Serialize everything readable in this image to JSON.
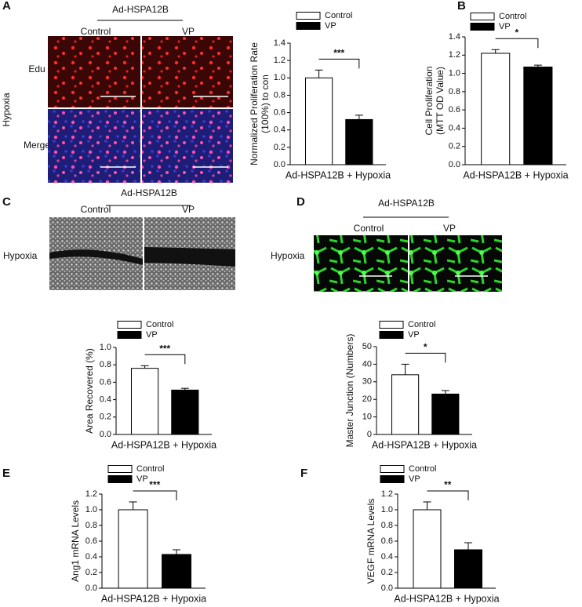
{
  "panels": {
    "letters": [
      "A",
      "B",
      "C",
      "D",
      "E",
      "F"
    ],
    "a": {
      "header": "Ad-HSPA12B",
      "columns": [
        "Control",
        "VP"
      ],
      "rows": [
        "Edu",
        "Merge"
      ],
      "side": "Hypoxia"
    },
    "c": {
      "header": "Ad-HSPA12B",
      "columns": [
        "Control",
        "VP"
      ],
      "side": "Hypoxia"
    },
    "d": {
      "header": "Ad-HSPA12B",
      "columns": [
        "Control",
        "VP"
      ],
      "side": "Hypoxia"
    }
  },
  "chart_data": [
    {
      "type": "bar",
      "y_label": [
        "Normalized Proliferation Rate",
        "(100%) to con"
      ],
      "categories": [
        "Ad-HSPA12B + Hypoxia"
      ],
      "series": [
        {
          "name": "Control",
          "color": "#ffffff",
          "values": [
            1.0
          ],
          "errors": [
            0.09
          ]
        },
        {
          "name": "VP",
          "color": "#000000",
          "values": [
            0.52
          ],
          "errors": [
            0.05
          ]
        }
      ],
      "significance": "***",
      "ylim": [
        0,
        1.4
      ],
      "yticks": [
        {
          "value": 0,
          "label": "0.0"
        },
        {
          "value": 0.2,
          "label": "0.2"
        },
        {
          "value": 0.4,
          "label": "0.4"
        },
        {
          "value": 0.6,
          "label": "0.6"
        },
        {
          "value": 0.8,
          "label": "0.8"
        },
        {
          "value": 1,
          "label": "1.0"
        },
        {
          "value": 1.2,
          "label": "1.2"
        },
        {
          "value": 1.4,
          "label": "1.4"
        }
      ]
    },
    {
      "type": "bar",
      "y_label": [
        "Cell Proliferation",
        "(MTT OD Value)"
      ],
      "categories": [
        "Ad-HSPA12B + Hypoxia"
      ],
      "series": [
        {
          "name": "Control",
          "color": "#ffffff",
          "values": [
            1.22
          ],
          "errors": [
            0.04
          ]
        },
        {
          "name": "VP",
          "color": "#000000",
          "values": [
            1.07
          ],
          "errors": [
            0.02
          ]
        }
      ],
      "significance": "*",
      "ylim": [
        0,
        1.4
      ],
      "yticks": [
        {
          "value": 0,
          "label": "0.0"
        },
        {
          "value": 0.2,
          "label": "0.2"
        },
        {
          "value": 0.4,
          "label": "0.4"
        },
        {
          "value": 0.6,
          "label": "0.6"
        },
        {
          "value": 0.8,
          "label": "0.8"
        },
        {
          "value": 1,
          "label": "1.0"
        },
        {
          "value": 1.2,
          "label": "1.2"
        },
        {
          "value": 1.4,
          "label": "1.4"
        }
      ]
    },
    {
      "type": "bar",
      "y_label": [
        "Area Recovered (%)"
      ],
      "categories": [
        "Ad-HSPA12B + Hypoxia"
      ],
      "series": [
        {
          "name": "Control",
          "color": "#ffffff",
          "values": [
            0.76
          ],
          "errors": [
            0.03
          ]
        },
        {
          "name": "VP",
          "color": "#000000",
          "values": [
            0.51
          ],
          "errors": [
            0.02
          ]
        }
      ],
      "significance": "***",
      "ylim": [
        0,
        1.0
      ],
      "yticks": [
        {
          "value": 0,
          "label": "0.0"
        },
        {
          "value": 0.2,
          "label": "0.2"
        },
        {
          "value": 0.4,
          "label": "0.4"
        },
        {
          "value": 0.6,
          "label": "0.6"
        },
        {
          "value": 0.8,
          "label": "0.8"
        },
        {
          "value": 1,
          "label": "1.0"
        }
      ]
    },
    {
      "type": "bar",
      "y_label": [
        "Master Junction (Numbers)"
      ],
      "categories": [
        "Ad-HSPA12B + Hypoxia"
      ],
      "series": [
        {
          "name": "Control",
          "color": "#ffffff",
          "values": [
            34
          ],
          "errors": [
            6
          ]
        },
        {
          "name": "VP",
          "color": "#000000",
          "values": [
            23
          ],
          "errors": [
            2
          ]
        }
      ],
      "significance": "*",
      "ylim": [
        0,
        50
      ],
      "yticks": [
        0,
        10,
        20,
        30,
        40,
        50
      ]
    },
    {
      "type": "bar",
      "y_label": [
        "Ang1 mRNA Levels"
      ],
      "categories": [
        "Ad-HSPA12B + Hypoxia"
      ],
      "series": [
        {
          "name": "Control",
          "color": "#ffffff",
          "values": [
            1.0
          ],
          "errors": [
            0.1
          ]
        },
        {
          "name": "VP",
          "color": "#000000",
          "values": [
            0.43
          ],
          "errors": [
            0.06
          ]
        }
      ],
      "significance": "***",
      "ylim": [
        0,
        1.2
      ],
      "yticks": [
        {
          "value": 0,
          "label": "0.0"
        },
        {
          "value": 0.2,
          "label": "0.2"
        },
        {
          "value": 0.4,
          "label": "0.4"
        },
        {
          "value": 0.6,
          "label": "0.6"
        },
        {
          "value": 0.8,
          "label": "0.8"
        },
        {
          "value": 1,
          "label": "1.0"
        },
        {
          "value": 1.2,
          "label": "1.2"
        }
      ]
    },
    {
      "type": "bar",
      "y_label": [
        "VEGF mRNA Levels"
      ],
      "categories": [
        "Ad-HSPA12B + Hypoxia"
      ],
      "series": [
        {
          "name": "Control",
          "color": "#ffffff",
          "values": [
            1.0
          ],
          "errors": [
            0.1
          ]
        },
        {
          "name": "VP",
          "color": "#000000",
          "values": [
            0.49
          ],
          "errors": [
            0.09
          ]
        }
      ],
      "significance": "**",
      "ylim": [
        0,
        1.2
      ],
      "yticks": [
        {
          "value": 0,
          "label": "0.0"
        },
        {
          "value": 0.2,
          "label": "0.2"
        },
        {
          "value": 0.4,
          "label": "0.4"
        },
        {
          "value": 0.6,
          "label": "0.6"
        },
        {
          "value": 0.8,
          "label": "0.8"
        },
        {
          "value": 1,
          "label": "1.0"
        },
        {
          "value": 1.2,
          "label": "1.2"
        }
      ]
    }
  ]
}
